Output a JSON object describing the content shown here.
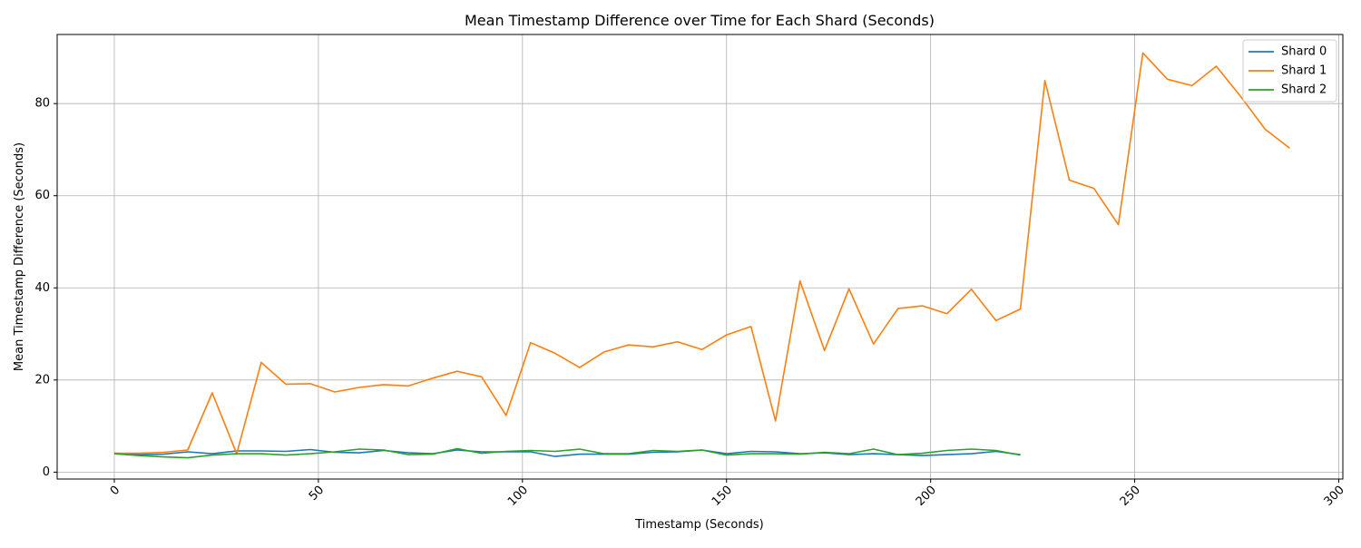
{
  "chart_data": {
    "type": "line",
    "title": "Mean Timestamp Difference over Time for Each Shard (Seconds)",
    "xlabel": "Timestamp (Seconds)",
    "ylabel": "Mean Timestamp Difference (Seconds)",
    "xlim": [
      -14,
      301
    ],
    "ylim": [
      -1.5,
      95
    ],
    "xticks": [
      0,
      50,
      100,
      150,
      200,
      250,
      300
    ],
    "yticks": [
      0,
      20,
      40,
      60,
      80
    ],
    "grid": true,
    "legend_position": "top-right",
    "series": [
      {
        "name": "Shard 0",
        "color": "#1f77b4",
        "x": [
          0,
          6,
          12,
          18,
          24,
          30,
          36,
          42,
          48,
          54,
          60,
          66,
          72,
          78,
          84,
          90,
          96,
          102,
          108,
          114,
          120,
          126,
          132,
          138,
          144,
          150,
          156,
          162,
          168,
          174,
          180,
          186,
          192,
          198,
          204,
          210,
          216,
          222
        ],
        "y": [
          4.1,
          3.8,
          3.9,
          4.4,
          4.0,
          4.6,
          4.6,
          4.5,
          4.9,
          4.3,
          4.2,
          4.7,
          4.2,
          4.0,
          4.8,
          4.4,
          4.4,
          4.4,
          3.4,
          3.9,
          3.9,
          3.9,
          4.3,
          4.4,
          4.8,
          4.0,
          4.5,
          4.4,
          4.0,
          4.2,
          3.8,
          4.0,
          3.8,
          3.6,
          3.8,
          4.0,
          4.5,
          3.8
        ]
      },
      {
        "name": "Shard 1",
        "color": "#ff7f0e",
        "x": [
          0,
          6,
          12,
          18,
          24,
          30,
          36,
          42,
          48,
          54,
          60,
          66,
          72,
          78,
          84,
          90,
          96,
          102,
          108,
          114,
          120,
          126,
          132,
          138,
          144,
          150,
          156,
          162,
          168,
          174,
          180,
          186,
          192,
          198,
          204,
          210,
          216,
          222,
          228,
          234,
          240,
          246,
          252,
          258,
          264,
          270,
          276,
          282,
          288
        ],
        "y": [
          4.1,
          4.1,
          4.3,
          4.8,
          17.2,
          4.0,
          23.8,
          19.1,
          19.2,
          17.4,
          18.4,
          19.0,
          18.7,
          20.4,
          21.9,
          20.7,
          12.3,
          28.1,
          25.8,
          22.7,
          26.1,
          27.6,
          27.2,
          28.3,
          26.6,
          29.8,
          31.6,
          11.1,
          41.5,
          26.4,
          39.8,
          27.8,
          35.5,
          36.1,
          34.4,
          39.7,
          32.9,
          35.4,
          85.0,
          63.4,
          61.6,
          53.7,
          91.0,
          85.3,
          83.9,
          88.1,
          81.5,
          74.4,
          70.3
        ]
      },
      {
        "name": "Shard 2",
        "color": "#2ca02c",
        "x": [
          0,
          6,
          12,
          18,
          24,
          30,
          36,
          42,
          48,
          54,
          60,
          66,
          72,
          78,
          84,
          90,
          96,
          102,
          108,
          114,
          120,
          126,
          132,
          138,
          144,
          150,
          156,
          162,
          168,
          174,
          180,
          186,
          192,
          198,
          204,
          210,
          216,
          222
        ],
        "y": [
          4.0,
          3.6,
          3.3,
          3.1,
          3.7,
          4.0,
          4.0,
          3.7,
          4.0,
          4.4,
          5.0,
          4.8,
          3.8,
          3.9,
          5.1,
          4.1,
          4.5,
          4.7,
          4.5,
          5.0,
          4.0,
          4.0,
          4.7,
          4.5,
          4.8,
          3.7,
          4.0,
          4.0,
          3.9,
          4.3,
          4.0,
          5.0,
          3.8,
          4.1,
          4.7,
          5.0,
          4.7,
          3.7
        ]
      }
    ]
  }
}
